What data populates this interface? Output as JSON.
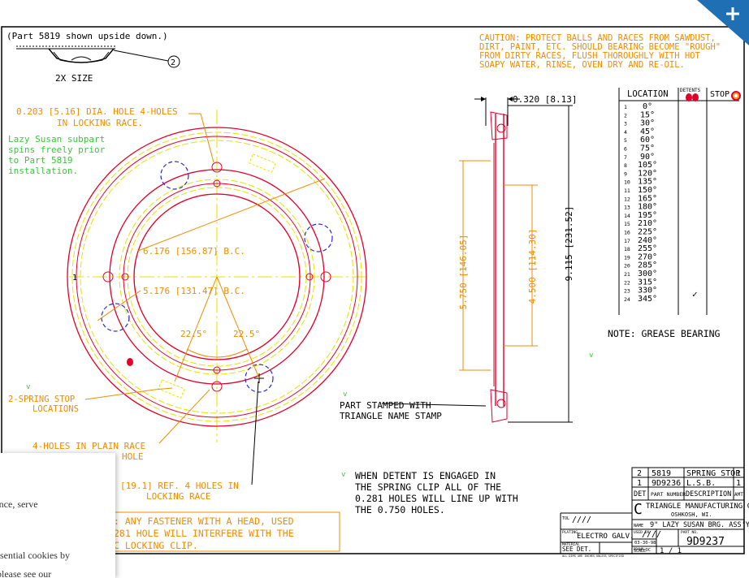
{
  "drawing": {
    "top_note": "(Part 5819 shown upside down.)",
    "balloon_2": "2",
    "scale_note": "2X SIZE",
    "caution_lines": [
      "CAUTION: PROTECT BALLS AND RACES FROM SAWDUST,",
      "DIRT, PAINT, ETC. SHOULD BEARING BECOME \"ROUGH\"",
      "FROM DIRTY RACES, FLUSH THOROUGHLY WITH HOT",
      "SOAPY WATER, RINSE, OVEN DRY AND RE-OIL."
    ],
    "hole_note_lines": [
      "0.203 [5.16] DIA. HOLE 4-HOLES",
      "IN LOCKING RACE."
    ],
    "lazy_susan_lines": [
      "Lazy Susan subpart",
      "spins freely prior",
      "to Part 5819",
      "installation."
    ],
    "bc_outer": "6.176 [156.87] B.C.",
    "bc_inner": "5.176 [131.47] B.C.",
    "angle_left": "22.5°",
    "angle_right": "22.5°",
    "mark_1": "1",
    "check_mark": "v",
    "spring_stop_lines": [
      "2-SPRING STOP",
      "LOCATIONS"
    ],
    "plain_race_lines": [
      "4-HOLES IN PLAIN RACE",
      "HOLE"
    ],
    "ref_holes_lines": [
      "[19.1] REF. 4 HOLES IN",
      "LOCKING RACE"
    ],
    "fastener_lines": [
      ": ANY FASTENER WITH A HEAD, USED",
      "281 HOLE WILL INTERFERE WITH THE",
      "C LOCKING CLIP."
    ],
    "thickness_dim": "0.320 [8.13]",
    "dim_146": "5.750 [146.05]",
    "dim_114": "4.500 [114.30]",
    "dim_231": "9.115 [231.52]",
    "stamp_lines": [
      "PART STAMPED WITH",
      "TRIANGLE NAME STAMP"
    ],
    "detent_lines": [
      "WHEN DETENT IS ENGAGED IN",
      "THE SPRING CLIP ALL OF THE",
      "0.281 HOLES WILL LINE UP WITH",
      "THE 0.750 HOLES."
    ],
    "grease_note": "NOTE: GREASE BEARING"
  },
  "location_table": {
    "headers": {
      "location": "LOCATION",
      "detents": "DETENTS",
      "stop": "STOP"
    },
    "rows": [
      {
        "n": "1",
        "angle": "0°"
      },
      {
        "n": "2",
        "angle": "15°"
      },
      {
        "n": "3",
        "angle": "30°"
      },
      {
        "n": "4",
        "angle": "45°"
      },
      {
        "n": "5",
        "angle": "60°"
      },
      {
        "n": "6",
        "angle": "75°"
      },
      {
        "n": "7",
        "angle": "90°"
      },
      {
        "n": "8",
        "angle": "105°"
      },
      {
        "n": "9",
        "angle": "120°"
      },
      {
        "n": "10",
        "angle": "135°"
      },
      {
        "n": "11",
        "angle": "150°"
      },
      {
        "n": "12",
        "angle": "165°"
      },
      {
        "n": "13",
        "angle": "180°"
      },
      {
        "n": "14",
        "angle": "195°"
      },
      {
        "n": "15",
        "angle": "210°"
      },
      {
        "n": "16",
        "angle": "225°"
      },
      {
        "n": "17",
        "angle": "240°"
      },
      {
        "n": "18",
        "angle": "255°"
      },
      {
        "n": "19",
        "angle": "270°"
      },
      {
        "n": "20",
        "angle": "285°"
      },
      {
        "n": "21",
        "angle": "300°"
      },
      {
        "n": "22",
        "angle": "315°"
      },
      {
        "n": "23",
        "angle": "330°"
      },
      {
        "n": "24",
        "angle": "345°"
      }
    ],
    "detent_check": "✓"
  },
  "parts_list": {
    "rows": [
      {
        "det": "2",
        "part": "5819",
        "desc": "SPRING STOP",
        "amt": "1"
      },
      {
        "det": "1",
        "part": "9D9236",
        "desc": "L.S.B.",
        "amt": "1"
      }
    ],
    "headers": {
      "det": "DET",
      "part": "PART NUMBER",
      "desc": "DESCRIPTION",
      "amt": "AMT"
    }
  },
  "title_block": {
    "company_symbol": "C",
    "company": "TRIANGLE MANUFACTURING CO.",
    "city": "OSHKOSH, WI.",
    "name_label": "NAME",
    "name": "9\" LAZY SUSAN BRG. ASS'Y",
    "tol_label": "TOL",
    "tol_value": "////",
    "used_label": "USED IN",
    "used_value": "////",
    "plating_label": "PLATING",
    "plating": "ELECTRO GALV.",
    "material_label": "MATERIAL",
    "material": "SEE DET.",
    "date": "03-30-98",
    "drawn_label": "DRAWN",
    "drawn": "DC",
    "checked_label": "CHECKED",
    "checked": "DC",
    "part_no_label": "PART NO.",
    "part_no": "9D9237",
    "dims_note": "ALL DIMS ARE INCHES UNLESS SPECIFIED",
    "scale_label": "SCALE",
    "scale": "1 / 1"
  },
  "cookie_banner": {
    "line1": "ience, serve",
    "line2": "essential cookies by",
    "line3": ", please see our"
  },
  "colors": {
    "orange": "#f08c00",
    "red": "#e0002a",
    "yellow": "#e8e000",
    "green": "#3cc43c",
    "blue": "#2a2ad8",
    "corner": "#1f6fb5"
  }
}
